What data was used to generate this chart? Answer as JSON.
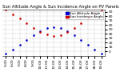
{
  "title": "Sun Altitude Angle & Sun Incidence Angle on PV Panels",
  "legend_labels": [
    "Sun Altitude Angle",
    "Sun Incidence Angle"
  ],
  "x_times": [
    "5:00",
    "6:00",
    "7:00",
    "8:00",
    "9:00",
    "10:00",
    "11:00",
    "12:00",
    "13:00",
    "14:00",
    "15:00",
    "16:00",
    "17:00",
    "18:00",
    "19:00"
  ],
  "altitude_y": [
    -5,
    5,
    16,
    27,
    37,
    46,
    53,
    56,
    54,
    47,
    37,
    26,
    15,
    4,
    -5
  ],
  "incidence_y": [
    95,
    85,
    75,
    64,
    54,
    45,
    38,
    35,
    37,
    44,
    54,
    65,
    76,
    87,
    95
  ],
  "ylim": [
    -10,
    95
  ],
  "yticks": [
    0,
    10,
    20,
    30,
    40,
    50,
    60,
    70,
    80,
    90
  ],
  "background_color": "#ffffff",
  "grid_color": "#888888",
  "altitude_color": "#0000cc",
  "incidence_color": "#cc0000",
  "title_fontsize": 3.8,
  "tick_fontsize": 3.2,
  "legend_fontsize": 3.0,
  "dot_size": 1.8
}
